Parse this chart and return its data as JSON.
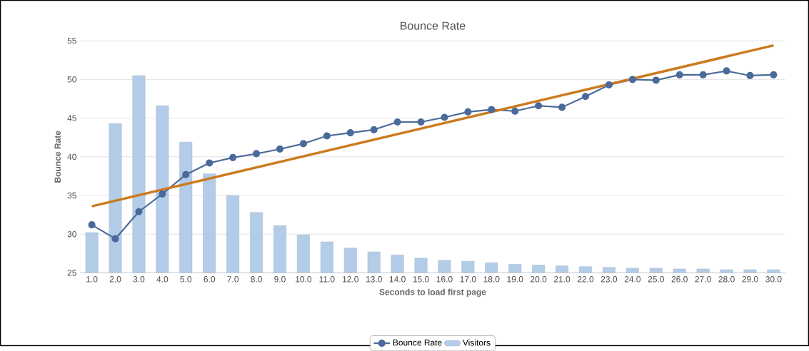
{
  "chart_data": {
    "type": "line",
    "title": "Bounce Rate",
    "xlabel": "Seconds to load first page",
    "ylabel": "Bounce Rate",
    "categories": [
      "1.0",
      "2.0",
      "3.0",
      "4.0",
      "5.0",
      "6.0",
      "7.0",
      "8.0",
      "9.0",
      "10.0",
      "11.0",
      "12.0",
      "13.0",
      "14.0",
      "15.0",
      "16.0",
      "17.0",
      "18.0",
      "19.0",
      "20.0",
      "21.0",
      "22.0",
      "23.0",
      "24.0",
      "25.0",
      "26.0",
      "27.0",
      "28.0",
      "29.0",
      "30.0"
    ],
    "series": [
      {
        "name": "Visitors",
        "type": "bar",
        "color": "#b3cde8",
        "values": [
          30.2,
          44.3,
          50.5,
          46.6,
          41.9,
          37.8,
          35.0,
          32.8,
          31.1,
          29.9,
          29.0,
          28.2,
          27.7,
          27.3,
          26.9,
          26.6,
          26.5,
          26.3,
          26.1,
          26.0,
          25.9,
          25.8,
          25.7,
          25.6,
          25.6,
          25.5,
          25.5,
          25.4,
          25.4,
          25.4
        ]
      },
      {
        "name": "Bounce Rate",
        "type": "line",
        "color": "#4a6a9a",
        "marker": "circle",
        "values": [
          31.2,
          29.4,
          32.9,
          35.2,
          37.7,
          39.2,
          39.9,
          40.4,
          41.0,
          41.7,
          42.7,
          43.1,
          43.5,
          44.5,
          44.5,
          45.1,
          45.8,
          46.1,
          45.9,
          46.6,
          46.4,
          47.8,
          49.3,
          50.0,
          49.9,
          50.6,
          50.6,
          51.1,
          50.5,
          50.6
        ]
      },
      {
        "color": "#cc7a1e",
        "marker": "none",
        "x": [
          "1.0",
          "30.0"
        ],
        "values": [
          33.6,
          54.4
        ]
      }
    ],
    "ylim": [
      25,
      55
    ],
    "yticks": [
      25,
      30,
      35,
      40,
      45,
      50,
      55
    ],
    "grid": "y",
    "legend": "bottom"
  }
}
